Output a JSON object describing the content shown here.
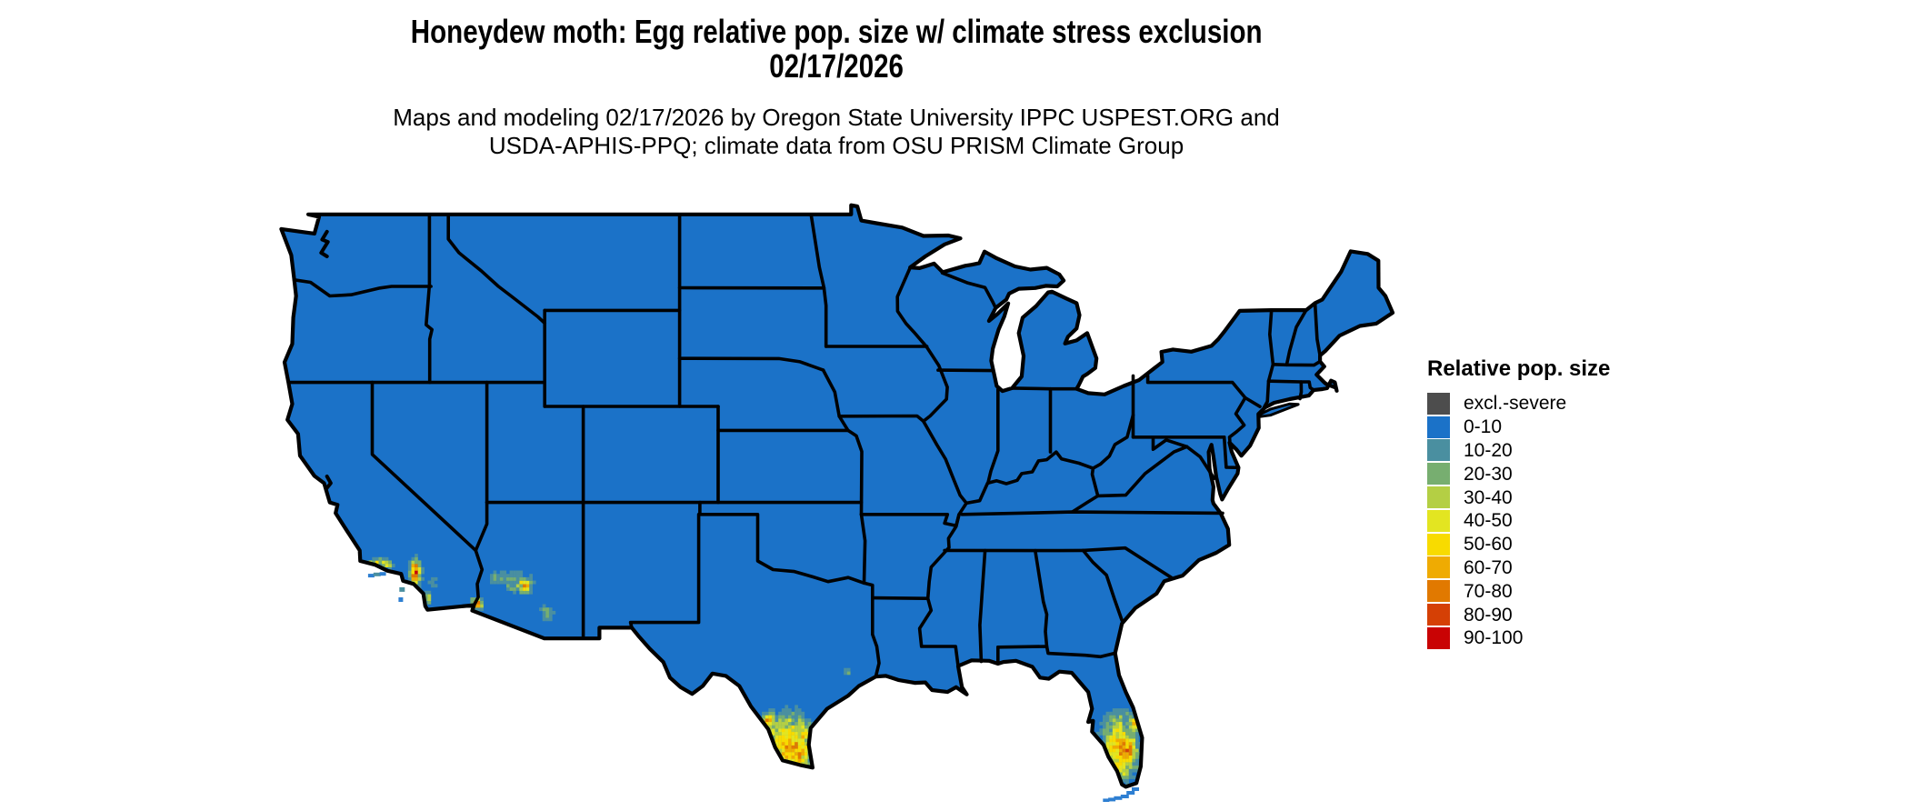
{
  "title": {
    "line1": "Honeydew moth: Egg relative pop. size w/ climate stress exclusion",
    "line2": "02/17/2026"
  },
  "subtitle": {
    "line1": "Maps and modeling 02/17/2026 by Oregon State University IPPC USPEST.ORG and",
    "line2": "USDA-APHIS-PPQ; climate data from OSU PRISM Climate Group"
  },
  "legend": {
    "title": "Relative pop. size",
    "items": [
      {
        "label": "excl.-severe",
        "color": "#4D4D4D"
      },
      {
        "label": "0-10",
        "color": "#1B72C8"
      },
      {
        "label": "10-20",
        "color": "#4A8FA0"
      },
      {
        "label": "20-30",
        "color": "#77AE70"
      },
      {
        "label": "30-40",
        "color": "#B4CF44"
      },
      {
        "label": "40-50",
        "color": "#E3E521"
      },
      {
        "label": "50-60",
        "color": "#F8DB00"
      },
      {
        "label": "60-70",
        "color": "#EFAB02"
      },
      {
        "label": "70-80",
        "color": "#E17900"
      },
      {
        "label": "80-90",
        "color": "#D54005"
      },
      {
        "label": "90-100",
        "color": "#C90304"
      }
    ]
  },
  "map": {
    "land_color": "#1B72C8",
    "border_color": "#000000",
    "water_color": "#FFFFFF",
    "hotspots_visible": [
      {
        "region": "southern California coast",
        "peak_band": "90-100"
      },
      {
        "region": "southwestern Arizona",
        "peak_band": "80-90"
      },
      {
        "region": "southern Texas (Rio Grande Valley)",
        "peak_band": "70-80"
      },
      {
        "region": "southern Florida",
        "peak_band": "70-80"
      }
    ]
  }
}
